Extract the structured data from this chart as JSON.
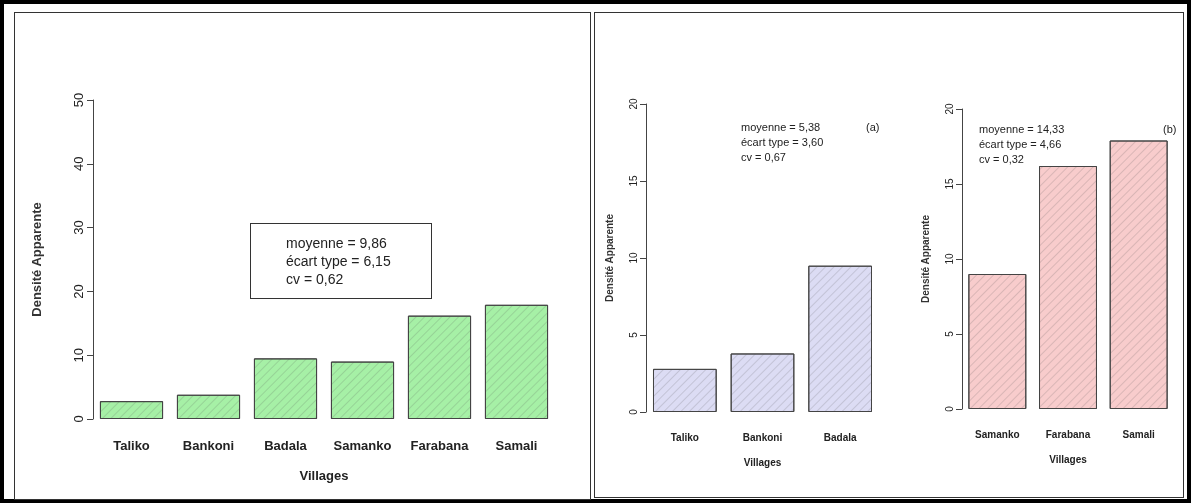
{
  "chart_data": [
    {
      "type": "bar",
      "xlabel": "Villages",
      "ylabel": "Densité Apparente",
      "categories": [
        "Taliko",
        "Bankoni",
        "Badala",
        "Samanko",
        "Farabana",
        "Samali"
      ],
      "values": [
        2.8,
        3.8,
        9.5,
        9.0,
        16.2,
        17.9
      ],
      "color": "#a6f0a6",
      "ylim": [
        0,
        50
      ],
      "yticks": [
        0,
        10,
        20,
        30,
        40,
        50
      ],
      "grid": false,
      "annotations": [
        "moyenne = 9,86\nécart type = 6,15\ncv = 0,62"
      ]
    },
    {
      "type": "bar",
      "xlabel": "Villages",
      "ylabel": "Densité Apparente",
      "categories": [
        "Taliko",
        "Bankoni",
        "Badala"
      ],
      "values": [
        2.8,
        3.8,
        9.5
      ],
      "color": "#dcdcf4",
      "ylim": [
        0,
        20
      ],
      "yticks": [
        0,
        5,
        10,
        15,
        20
      ],
      "grid": false,
      "annotations": [
        "moyenne = 5,38\nécart type = 3,60\ncv = 0,67",
        "(a)"
      ]
    },
    {
      "type": "bar",
      "xlabel": "Villages",
      "ylabel": "Densité Apparente",
      "categories": [
        "Samanko",
        "Farabana",
        "Samali"
      ],
      "values": [
        9.0,
        16.2,
        17.9
      ],
      "color": "#f8cccc",
      "ylim": [
        0,
        20
      ],
      "yticks": [
        0,
        5,
        10,
        15,
        20
      ],
      "grid": false,
      "annotations": [
        "moyenne = 14,33\nécart type = 4,66\ncv = 0,32",
        "(b)"
      ]
    }
  ]
}
